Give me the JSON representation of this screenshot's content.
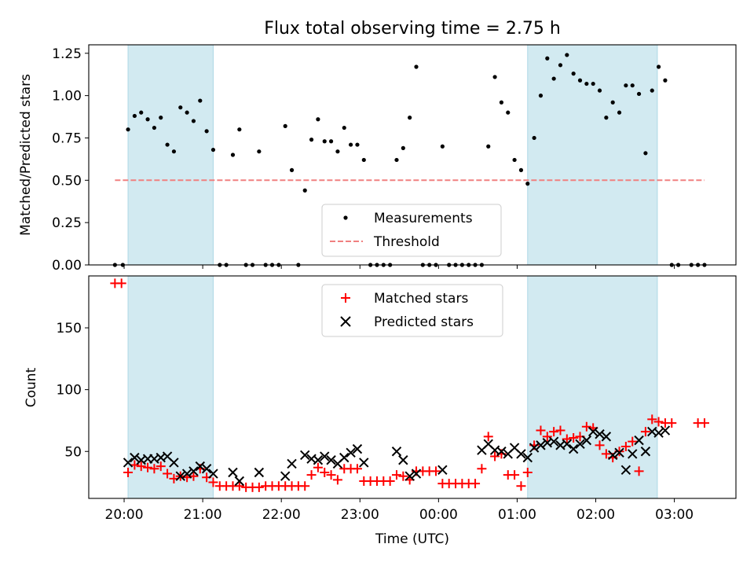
{
  "title": "Flux total observing time = 2.75 h",
  "colors": {
    "shade": "#add8e6",
    "measurement": "#000000",
    "threshold": "#f08080",
    "matched": "#ff0000",
    "predicted": "#000000"
  },
  "chart_data": [
    {
      "type": "scatter",
      "ylabel": "Matched/Predicted stars",
      "ylim": [
        0,
        1.3
      ],
      "yticks": [
        "0.00",
        "0.25",
        "0.50",
        "0.75",
        "1.00",
        "1.25"
      ],
      "ytick_values": [
        0,
        0.25,
        0.5,
        0.75,
        1.0,
        1.25
      ],
      "xlim": [
        "19:33",
        "03:47"
      ],
      "shaded_spans": [
        [
          "20:03",
          "21:08"
        ],
        [
          "01:08",
          "02:47"
        ]
      ],
      "legend": {
        "position": "lower-center",
        "entries": [
          "Measurements",
          "Threshold"
        ]
      },
      "threshold": {
        "name": "Threshold",
        "y": 0.5,
        "x_range": [
          "19:53",
          "03:23"
        ]
      },
      "series": [
        {
          "name": "Measurements",
          "points": [
            [
              "19:53",
              0
            ],
            [
              "19:59",
              0
            ],
            [
              "20:03",
              0.8
            ],
            [
              "20:08",
              0.88
            ],
            [
              "20:13",
              0.9
            ],
            [
              "20:18",
              0.86
            ],
            [
              "20:23",
              0.81
            ],
            [
              "20:28",
              0.87
            ],
            [
              "20:33",
              0.71
            ],
            [
              "20:38",
              0.67
            ],
            [
              "20:43",
              0.93
            ],
            [
              "20:48",
              0.9
            ],
            [
              "20:53",
              0.85
            ],
            [
              "20:58",
              0.97
            ],
            [
              "21:03",
              0.79
            ],
            [
              "21:08",
              0.68
            ],
            [
              "21:13",
              0
            ],
            [
              "21:18",
              0
            ],
            [
              "21:23",
              0.65
            ],
            [
              "21:28",
              0.8
            ],
            [
              "21:33",
              0
            ],
            [
              "21:38",
              0
            ],
            [
              "21:43",
              0.67
            ],
            [
              "21:48",
              0
            ],
            [
              "21:53",
              0
            ],
            [
              "21:58",
              0
            ],
            [
              "22:03",
              0.82
            ],
            [
              "22:08",
              0.56
            ],
            [
              "22:13",
              0
            ],
            [
              "22:18",
              0.44
            ],
            [
              "22:23",
              0.74
            ],
            [
              "22:28",
              0.86
            ],
            [
              "22:33",
              0.73
            ],
            [
              "22:38",
              0.73
            ],
            [
              "22:43",
              0.67
            ],
            [
              "22:48",
              0.81
            ],
            [
              "22:53",
              0.71
            ],
            [
              "22:58",
              0.71
            ],
            [
              "23:03",
              0.62
            ],
            [
              "23:08",
              0
            ],
            [
              "23:13",
              0
            ],
            [
              "23:18",
              0
            ],
            [
              "23:23",
              0
            ],
            [
              "23:28",
              0.62
            ],
            [
              "23:33",
              0.69
            ],
            [
              "23:38",
              0.87
            ],
            [
              "23:43",
              1.17
            ],
            [
              "23:48",
              0
            ],
            [
              "23:53",
              0
            ],
            [
              "23:58",
              0
            ],
            [
              "00:03",
              0.7
            ],
            [
              "00:08",
              0
            ],
            [
              "00:13",
              0
            ],
            [
              "00:18",
              0
            ],
            [
              "00:23",
              0
            ],
            [
              "00:28",
              0
            ],
            [
              "00:33",
              0
            ],
            [
              "00:38",
              0.7
            ],
            [
              "00:43",
              1.11
            ],
            [
              "00:48",
              0.96
            ],
            [
              "00:53",
              0.9
            ],
            [
              "00:58",
              0.62
            ],
            [
              "01:03",
              0.56
            ],
            [
              "01:08",
              0.48
            ],
            [
              "01:13",
              0.75
            ],
            [
              "01:18",
              1.0
            ],
            [
              "01:23",
              1.22
            ],
            [
              "01:28",
              1.1
            ],
            [
              "01:33",
              1.18
            ],
            [
              "01:38",
              1.24
            ],
            [
              "01:43",
              1.13
            ],
            [
              "01:48",
              1.09
            ],
            [
              "01:53",
              1.07
            ],
            [
              "01:58",
              1.07
            ],
            [
              "02:03",
              1.03
            ],
            [
              "02:08",
              0.87
            ],
            [
              "02:13",
              0.96
            ],
            [
              "02:18",
              0.9
            ],
            [
              "02:23",
              1.06
            ],
            [
              "02:28",
              1.06
            ],
            [
              "02:33",
              1.01
            ],
            [
              "02:38",
              0.66
            ],
            [
              "02:43",
              1.03
            ],
            [
              "02:48",
              1.17
            ],
            [
              "02:53",
              1.09
            ],
            [
              "02:58",
              0
            ],
            [
              "03:03",
              0
            ],
            [
              "03:13",
              0
            ],
            [
              "03:18",
              0
            ],
            [
              "03:23",
              0
            ]
          ]
        }
      ]
    },
    {
      "type": "scatter",
      "ylabel": "Count",
      "xlabel": "Time (UTC)",
      "ylim": [
        12,
        192
      ],
      "yticks": [
        "50",
        "100",
        "150"
      ],
      "ytick_values": [
        50,
        100,
        150
      ],
      "xlim": [
        "19:33",
        "03:47"
      ],
      "xticks": [
        "20:00",
        "21:00",
        "22:00",
        "23:00",
        "00:00",
        "01:00",
        "02:00",
        "03:00"
      ],
      "shaded_spans": [
        [
          "20:03",
          "21:08"
        ],
        [
          "01:08",
          "02:47"
        ]
      ],
      "legend": {
        "position": "upper-center",
        "entries": [
          "Matched stars",
          "Predicted stars"
        ]
      },
      "series": [
        {
          "name": "Matched stars",
          "marker": "plus",
          "points": [
            [
              "19:53",
              186
            ],
            [
              "19:58",
              186
            ],
            [
              "20:03",
              33
            ],
            [
              "20:08",
              39
            ],
            [
              "20:13",
              38
            ],
            [
              "20:18",
              37
            ],
            [
              "20:23",
              36
            ],
            [
              "20:28",
              38
            ],
            [
              "20:33",
              32
            ],
            [
              "20:38",
              28
            ],
            [
              "20:43",
              30
            ],
            [
              "20:48",
              29
            ],
            [
              "20:53",
              30
            ],
            [
              "20:58",
              36
            ],
            [
              "21:03",
              29
            ],
            [
              "21:08",
              25
            ],
            [
              "21:13",
              22
            ],
            [
              "21:18",
              22
            ],
            [
              "21:23",
              22
            ],
            [
              "21:28",
              22
            ],
            [
              "21:33",
              21
            ],
            [
              "21:38",
              21
            ],
            [
              "21:43",
              21
            ],
            [
              "21:48",
              22
            ],
            [
              "21:53",
              22
            ],
            [
              "21:58",
              22
            ],
            [
              "22:03",
              22
            ],
            [
              "22:08",
              22
            ],
            [
              "22:13",
              22
            ],
            [
              "22:18",
              22
            ],
            [
              "22:23",
              31
            ],
            [
              "22:28",
              37
            ],
            [
              "22:33",
              33
            ],
            [
              "22:38",
              31
            ],
            [
              "22:43",
              27
            ],
            [
              "22:48",
              36
            ],
            [
              "22:53",
              36
            ],
            [
              "22:58",
              36
            ],
            [
              "23:03",
              26
            ],
            [
              "23:08",
              26
            ],
            [
              "23:13",
              26
            ],
            [
              "23:18",
              26
            ],
            [
              "23:23",
              26
            ],
            [
              "23:28",
              31
            ],
            [
              "23:33",
              30
            ],
            [
              "23:38",
              27
            ],
            [
              "23:43",
              34
            ],
            [
              "23:48",
              34
            ],
            [
              "23:53",
              34
            ],
            [
              "23:58",
              34
            ],
            [
              "00:03",
              24
            ],
            [
              "00:08",
              24
            ],
            [
              "00:13",
              24
            ],
            [
              "00:18",
              24
            ],
            [
              "00:23",
              24
            ],
            [
              "00:28",
              24
            ],
            [
              "00:33",
              36
            ],
            [
              "00:38",
              62
            ],
            [
              "00:43",
              46
            ],
            [
              "00:48",
              48
            ],
            [
              "00:53",
              31
            ],
            [
              "00:58",
              31
            ],
            [
              "01:03",
              22
            ],
            [
              "01:08",
              33
            ],
            [
              "01:13",
              55
            ],
            [
              "01:18",
              67
            ],
            [
              "01:23",
              62
            ],
            [
              "01:28",
              66
            ],
            [
              "01:33",
              67
            ],
            [
              "01:38",
              60
            ],
            [
              "01:43",
              61
            ],
            [
              "01:48",
              62
            ],
            [
              "01:53",
              70
            ],
            [
              "01:58",
              69
            ],
            [
              "02:03",
              55
            ],
            [
              "02:08",
              48
            ],
            [
              "02:13",
              45
            ],
            [
              "02:18",
              50
            ],
            [
              "02:23",
              54
            ],
            [
              "02:28",
              58
            ],
            [
              "02:33",
              34
            ],
            [
              "02:38",
              66
            ],
            [
              "02:43",
              76
            ],
            [
              "02:48",
              74
            ],
            [
              "02:53",
              73
            ],
            [
              "02:58",
              73
            ],
            [
              "03:18",
              73
            ],
            [
              "03:23",
              73
            ]
          ]
        },
        {
          "name": "Predicted stars",
          "marker": "x",
          "points": [
            [
              "20:03",
              41
            ],
            [
              "20:08",
              45
            ],
            [
              "20:13",
              43
            ],
            [
              "20:18",
              44
            ],
            [
              "20:23",
              44
            ],
            [
              "20:28",
              45
            ],
            [
              "20:33",
              46
            ],
            [
              "20:38",
              41
            ],
            [
              "20:43",
              30
            ],
            [
              "20:48",
              32
            ],
            [
              "20:53",
              34
            ],
            [
              "20:58",
              38
            ],
            [
              "21:03",
              36
            ],
            [
              "21:08",
              32
            ],
            [
              "21:23",
              33
            ],
            [
              "21:28",
              26
            ],
            [
              "21:43",
              33
            ],
            [
              "22:03",
              30
            ],
            [
              "22:08",
              40
            ],
            [
              "22:18",
              47
            ],
            [
              "22:23",
              44
            ],
            [
              "22:28",
              43
            ],
            [
              "22:33",
              46
            ],
            [
              "22:38",
              43
            ],
            [
              "22:43",
              40
            ],
            [
              "22:48",
              45
            ],
            [
              "22:53",
              49
            ],
            [
              "22:58",
              52
            ],
            [
              "23:03",
              41
            ],
            [
              "23:28",
              50
            ],
            [
              "23:33",
              43
            ],
            [
              "23:38",
              30
            ],
            [
              "23:43",
              32
            ],
            [
              "00:03",
              35
            ],
            [
              "00:33",
              51
            ],
            [
              "00:38",
              56
            ],
            [
              "00:43",
              51
            ],
            [
              "00:48",
              50
            ],
            [
              "00:53",
              48
            ],
            [
              "00:58",
              53
            ],
            [
              "01:03",
              48
            ],
            [
              "01:08",
              45
            ],
            [
              "01:13",
              53
            ],
            [
              "01:18",
              55
            ],
            [
              "01:23",
              57
            ],
            [
              "01:28",
              58
            ],
            [
              "01:33",
              55
            ],
            [
              "01:38",
              56
            ],
            [
              "01:43",
              52
            ],
            [
              "01:48",
              56
            ],
            [
              "01:53",
              59
            ],
            [
              "01:58",
              66
            ],
            [
              "02:03",
              64
            ],
            [
              "02:08",
              62
            ],
            [
              "02:13",
              47
            ],
            [
              "02:18",
              49
            ],
            [
              "02:23",
              35
            ],
            [
              "02:28",
              48
            ],
            [
              "02:33",
              59
            ],
            [
              "02:38",
              50
            ],
            [
              "02:43",
              66
            ],
            [
              "02:48",
              65
            ],
            [
              "02:53",
              67
            ]
          ]
        }
      ]
    }
  ]
}
